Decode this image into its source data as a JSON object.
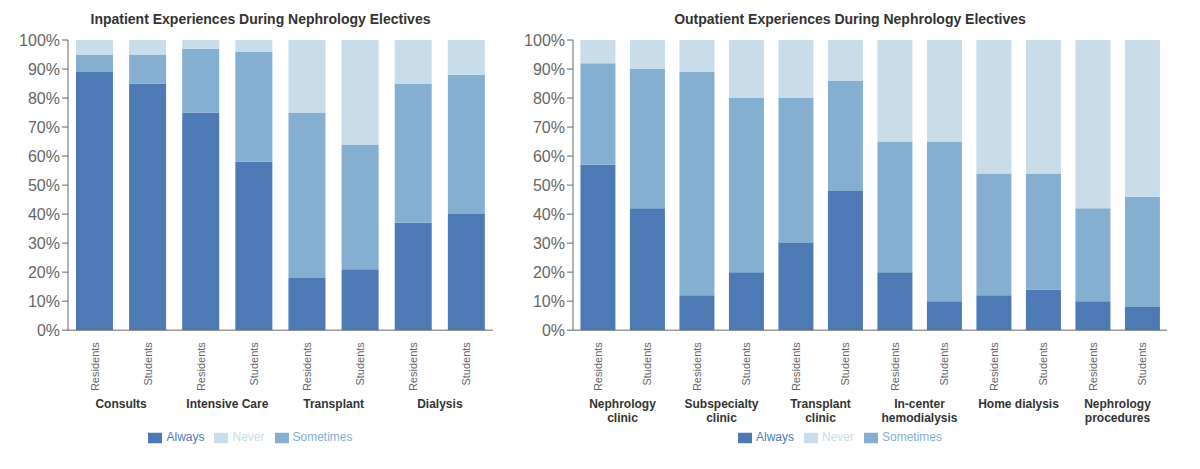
{
  "chart_data": [
    {
      "type": "bar",
      "stacked": true,
      "title": "Inpatient Experiences During Nephrology Electives",
      "categories": [
        "Residents",
        "Students",
        "Residents",
        "Students",
        "Residents",
        "Students",
        "Residents",
        "Students"
      ],
      "group_labels": [
        "Consults",
        "Intensive Care",
        "Transplant",
        "Dialysis"
      ],
      "series": [
        {
          "name": "Always",
          "color": "#4d7ab5",
          "values": [
            89,
            85,
            75,
            58,
            18,
            21,
            37,
            40
          ]
        },
        {
          "name": "Sometimes",
          "color": "#85afd0",
          "values": [
            6,
            10,
            22,
            38,
            57,
            43,
            48,
            48
          ]
        },
        {
          "name": "Never",
          "color": "#c8dcea",
          "values": [
            5,
            5,
            3,
            4,
            25,
            36,
            15,
            12
          ]
        }
      ],
      "ylim": [
        0,
        100
      ],
      "yticks": [
        {
          "value": 0,
          "label": "0%"
        },
        {
          "value": 10,
          "label": "10%"
        },
        {
          "value": 20,
          "label": "20%"
        },
        {
          "value": 30,
          "label": "30%"
        },
        {
          "value": 40,
          "label": "40%"
        },
        {
          "value": 50,
          "label": "50%"
        },
        {
          "value": 60,
          "label": "60%"
        },
        {
          "value": 70,
          "label": "70%"
        },
        {
          "value": 80,
          "label": "80%"
        },
        {
          "value": 90,
          "label": "90%"
        },
        {
          "value": 100,
          "label": "100%"
        }
      ],
      "grid": false,
      "legend": "bottom"
    },
    {
      "type": "bar",
      "stacked": true,
      "title": "Outpatient Experiences During Nephrology Electives",
      "categories": [
        "Residents",
        "Students",
        "Residents",
        "Students",
        "Residents",
        "Students",
        "Residents",
        "Students",
        "Residents",
        "Students",
        "Residents",
        "Students"
      ],
      "group_labels": [
        "Nephrology\nclinic",
        "Subspecialty\nclinic",
        "Transplant\nclinic",
        "In-center\nhemodialysis",
        "Home dialysis",
        "Nephrology\nprocedures"
      ],
      "series": [
        {
          "name": "Always",
          "color": "#4d7ab5",
          "values": [
            57,
            42,
            12,
            20,
            30,
            48,
            20,
            10,
            12,
            14,
            10,
            8
          ]
        },
        {
          "name": "Sometimes",
          "color": "#85afd0",
          "values": [
            35,
            48,
            77,
            60,
            50,
            38,
            45,
            55,
            42,
            40,
            32,
            38
          ]
        },
        {
          "name": "Never",
          "color": "#c8dcea",
          "values": [
            8,
            10,
            11,
            20,
            20,
            14,
            35,
            35,
            46,
            46,
            58,
            54
          ]
        }
      ],
      "ylim": [
        0,
        100
      ],
      "yticks": [
        {
          "value": 0,
          "label": "0%"
        },
        {
          "value": 10,
          "label": "10%"
        },
        {
          "value": 20,
          "label": "20%"
        },
        {
          "value": 30,
          "label": "30%"
        },
        {
          "value": 40,
          "label": "40%"
        },
        {
          "value": 50,
          "label": "50%"
        },
        {
          "value": 60,
          "label": "60%"
        },
        {
          "value": 70,
          "label": "70%"
        },
        {
          "value": 80,
          "label": "80%"
        },
        {
          "value": 90,
          "label": "90%"
        },
        {
          "value": 100,
          "label": "100%"
        }
      ],
      "grid": false,
      "legend": "bottom"
    }
  ]
}
